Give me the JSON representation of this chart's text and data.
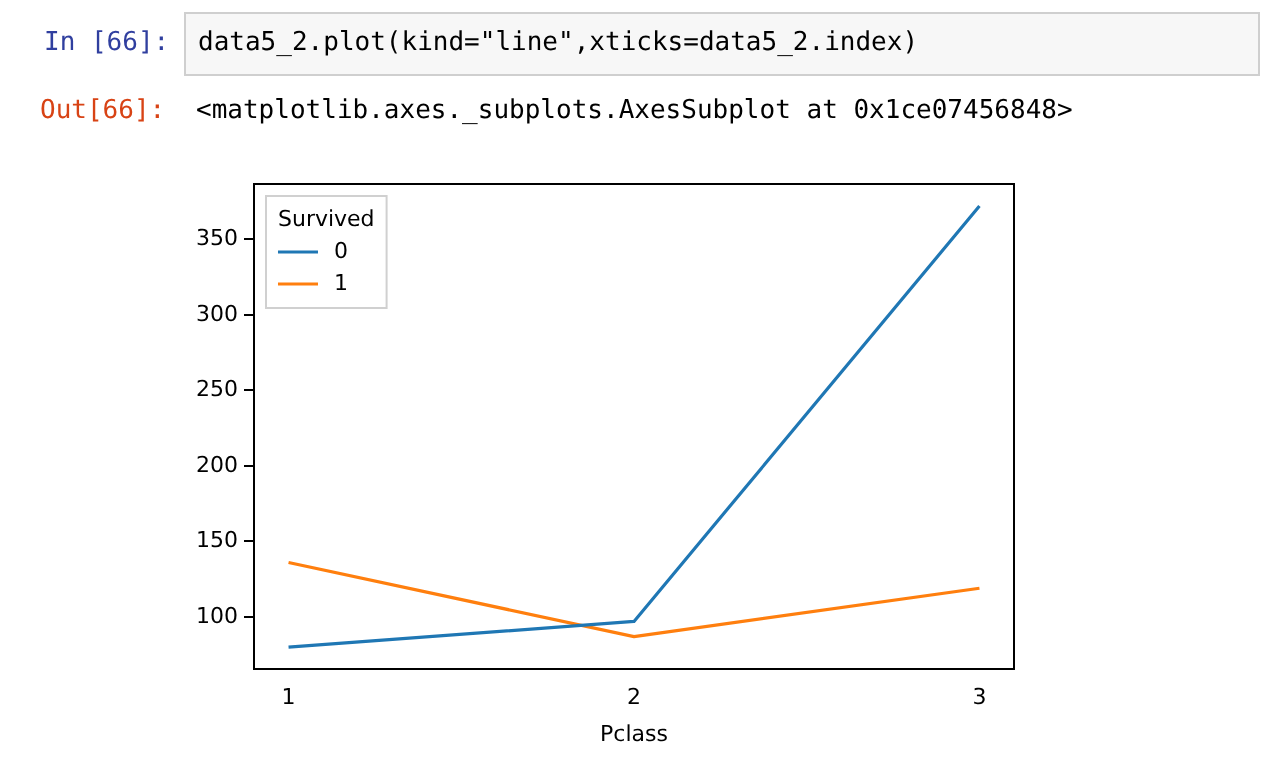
{
  "chart_data": {
    "type": "line",
    "xlabel": "Pclass",
    "legend_title": "Survived",
    "legend": "top left",
    "marker": "none",
    "grid": false,
    "x": [
      1,
      2,
      3
    ],
    "xlim": [
      0.9,
      3.1
    ],
    "xticks": [
      1,
      2,
      3
    ],
    "ylim": [
      65.4,
      386.6
    ],
    "yticks": [
      100,
      150,
      200,
      250,
      300,
      350
    ],
    "series": [
      {
        "name": "0",
        "color": "#1f77b4",
        "values": [
          80,
          97,
          372
        ]
      },
      {
        "name": "1",
        "color": "#ff7f0e",
        "values": [
          136,
          87,
          119
        ]
      }
    ],
    "annotations": [
      "In [66]:",
      "data5_2.plot(kind=\"line\",xticks=data5_2.index)",
      "Out[66]:",
      "<matplotlib.axes._subplots.AxesSubplot at 0x1ce07456848>"
    ]
  }
}
